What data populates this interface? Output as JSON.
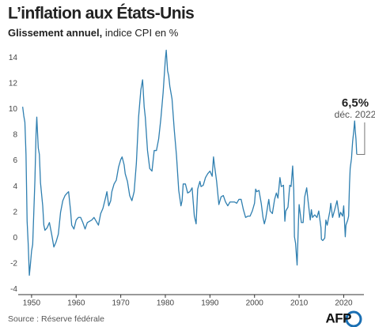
{
  "chart_data": {
    "type": "line",
    "title": "L’inflation aux États-Unis",
    "subtitle": {
      "emphasis": "Glissement annuel,",
      "text": "indice CPI en %"
    },
    "annotation": {
      "label": "6,5%",
      "note": "déc. 2022"
    },
    "source": "Source : Réserve fédérale",
    "logo": "AFP",
    "color": "#2f7fb0",
    "grid": false,
    "xlim": [
      1947,
      2024
    ],
    "xticks": [
      1950,
      1960,
      1970,
      1980,
      1990,
      2000,
      2010,
      2020
    ],
    "ylim": [
      -4.4,
      15
    ],
    "yticks": [
      -4,
      -2,
      0,
      2,
      4,
      6,
      8,
      10,
      12,
      14
    ],
    "x": [
      1948.0,
      1948.25,
      1948.5,
      1948.75,
      1949.0,
      1949.25,
      1949.5,
      1949.75,
      1950.0,
      1950.25,
      1950.5,
      1950.75,
      1951.0,
      1951.17,
      1951.5,
      1951.75,
      1952.0,
      1952.5,
      1952.75,
      1953.0,
      1953.5,
      1954.0,
      1954.5,
      1955.0,
      1955.5,
      1956.0,
      1956.5,
      1957.0,
      1957.5,
      1958.0,
      1958.3,
      1958.75,
      1959.0,
      1959.5,
      1960.0,
      1960.5,
      1961.0,
      1961.5,
      1962.0,
      1962.5,
      1963.0,
      1963.5,
      1964.0,
      1964.5,
      1965.0,
      1965.5,
      1966.0,
      1966.5,
      1966.9,
      1967.3,
      1967.75,
      1968.0,
      1968.5,
      1969.0,
      1969.5,
      1970.0,
      1970.3,
      1970.75,
      1971.0,
      1971.5,
      1972.0,
      1972.5,
      1973.0,
      1973.5,
      1974.0,
      1974.5,
      1974.9,
      1975.25,
      1975.5,
      1976.0,
      1976.5,
      1977.0,
      1977.5,
      1978.0,
      1978.5,
      1979.0,
      1979.5,
      1980.0,
      1980.2,
      1980.5,
      1980.75,
      1981.0,
      1981.5,
      1982.0,
      1982.5,
      1983.0,
      1983.5,
      1983.75,
      1984.0,
      1984.5,
      1985.0,
      1985.5,
      1986.0,
      1986.5,
      1986.9,
      1987.25,
      1987.75,
      1988.0,
      1988.5,
      1989.0,
      1989.5,
      1990.0,
      1990.5,
      1990.8,
      1991.0,
      1991.5,
      1992.0,
      1992.5,
      1993.0,
      1993.5,
      1994.0,
      1994.5,
      1995.0,
      1995.5,
      1996.0,
      1996.5,
      1997.0,
      1997.5,
      1998.0,
      1998.5,
      1999.0,
      1999.5,
      2000.0,
      2000.25,
      2000.5,
      2001.0,
      2001.5,
      2001.9,
      2002.2,
      2002.5,
      2003.0,
      2003.2,
      2003.5,
      2004.0,
      2004.5,
      2004.9,
      2005.25,
      2005.7,
      2006.0,
      2006.5,
      2006.8,
      2007.0,
      2007.5,
      2007.9,
      2008.2,
      2008.55,
      2008.8,
      2008.95,
      2009.2,
      2009.55,
      2009.9,
      2010.0,
      2010.5,
      2010.9,
      2011.25,
      2011.7,
      2012.0,
      2012.5,
      2012.75,
      2013.0,
      2013.5,
      2014.0,
      2014.4,
      2014.9,
      2015.0,
      2015.3,
      2015.75,
      2016.0,
      2016.3,
      2016.9,
      2017.1,
      2017.5,
      2017.9,
      2018.5,
      2018.9,
      2019.0,
      2019.3,
      2019.75,
      2020.0,
      2020.35,
      2020.5,
      2020.9,
      2021.1,
      2021.3,
      2021.45,
      2021.75,
      2021.9,
      2022.0,
      2022.25,
      2022.45,
      2022.6,
      2022.75,
      2022.92
    ],
    "values": [
      10.2,
      9.5,
      9.0,
      6.5,
      1.3,
      -0.5,
      -2.9,
      -2.0,
      -1.0,
      -0.5,
      2.0,
      4.5,
      8.1,
      9.4,
      7.0,
      6.5,
      4.3,
      2.5,
      1.0,
      0.6,
      0.8,
      1.2,
      0.3,
      -0.7,
      -0.3,
      0.3,
      2.0,
      2.9,
      3.3,
      3.5,
      3.6,
      2.1,
      1.0,
      0.7,
      1.4,
      1.6,
      1.6,
      1.2,
      0.7,
      1.2,
      1.3,
      1.4,
      1.6,
      1.3,
      1.0,
      1.9,
      2.3,
      3.0,
      3.6,
      2.5,
      2.9,
      3.6,
      4.2,
      4.5,
      5.5,
      6.1,
      6.3,
      5.7,
      5.0,
      4.4,
      3.3,
      2.9,
      3.6,
      5.8,
      9.4,
      11.5,
      12.3,
      10.2,
      9.4,
      6.8,
      5.4,
      5.2,
      6.8,
      6.8,
      7.7,
      9.3,
      11.3,
      13.9,
      14.6,
      13.0,
      12.6,
      11.8,
      10.8,
      8.4,
      6.4,
      3.7,
      2.5,
      2.9,
      4.2,
      4.2,
      3.5,
      3.6,
      3.9,
      1.7,
      1.1,
      3.8,
      4.4,
      4.0,
      4.1,
      4.7,
      5.0,
      5.2,
      4.8,
      6.3,
      5.7,
      4.4,
      2.6,
      3.2,
      3.3,
      2.8,
      2.5,
      2.8,
      2.8,
      2.8,
      2.7,
      3.0,
      3.0,
      2.2,
      1.6,
      1.7,
      1.7,
      2.1,
      2.7,
      3.8,
      3.6,
      3.7,
      2.7,
      1.6,
      1.1,
      1.5,
      2.6,
      3.0,
      2.1,
      1.9,
      3.0,
      3.5,
      3.1,
      4.7,
      4.0,
      4.1,
      1.3,
      2.1,
      2.4,
      4.1,
      4.0,
      5.6,
      3.7,
      0.1,
      -0.4,
      -2.1,
      1.8,
      2.6,
      1.2,
      1.2,
      3.2,
      3.9,
      2.9,
      1.4,
      2.2,
      1.6,
      1.8,
      1.6,
      2.1,
      0.8,
      -0.1,
      -0.2,
      0.0,
      1.4,
      1.0,
      2.1,
      2.7,
      1.6,
      2.1,
      2.9,
      1.9,
      1.6,
      2.0,
      1.7,
      2.5,
      0.1,
      1.0,
      1.4,
      1.7,
      4.2,
      5.4,
      6.2,
      7.0,
      7.5,
      8.3,
      9.1,
      8.3,
      7.7,
      6.5
    ]
  }
}
